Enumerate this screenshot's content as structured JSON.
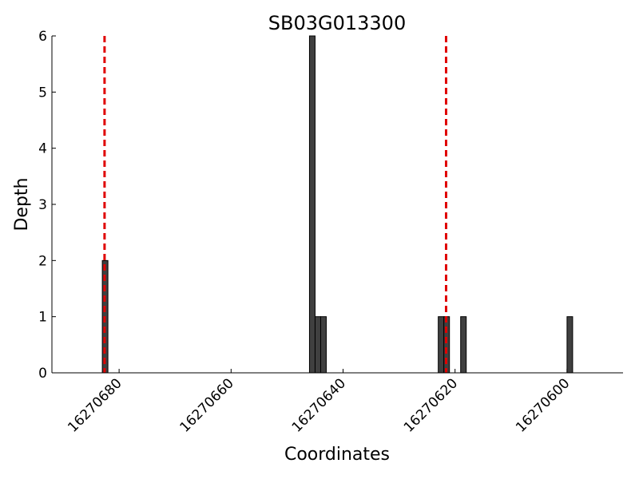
{
  "chart_data": {
    "type": "bar",
    "title": "SB03G013300",
    "x_label": "Coordinates",
    "y_label": "Depth",
    "x": [
      16270682,
      16270645,
      16270644,
      16270643,
      16270622,
      16270621,
      16270618,
      16270599
    ],
    "values": [
      2,
      6,
      1,
      1,
      1,
      1,
      1,
      1
    ],
    "color": "#404040",
    "xlim": [
      16270692,
      16270590
    ],
    "xticks": [
      16270680,
      16270660,
      16270640,
      16270620,
      16270600
    ],
    "ylim": [
      0,
      6
    ],
    "yticks": [
      0,
      1,
      2,
      3,
      4,
      5,
      6
    ],
    "vlines": {
      "x": [
        16270682.6,
        16270621.6
      ],
      "color": "#e00000",
      "style": "dashed"
    }
  }
}
